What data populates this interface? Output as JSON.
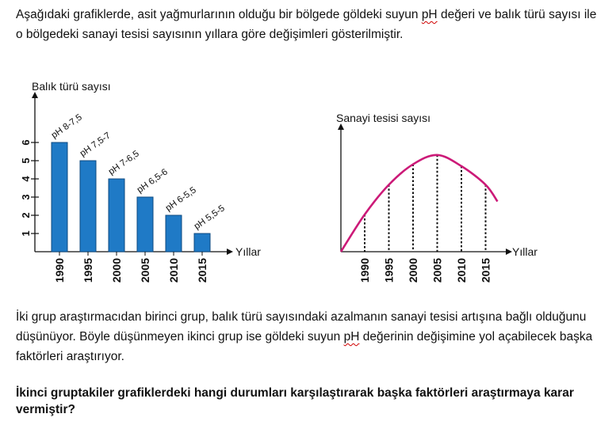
{
  "text": {
    "intro_a": "Aşağıdaki grafiklerde, asit yağmurlarının olduğu bir bölgede göldeki suyun ",
    "intro_ph": "pH",
    "intro_b": " değeri ve balık türü sayısı ile o bölgedeki sanayi tesisi sayısının yıllara göre değişimleri gösterilmiştir.",
    "middle_a": "İki grup araştırmacıdan birinci grup, balık türü sayısındaki azalmanın sanayi tesisi artışına bağlı olduğunu düşünüyor. Böyle düşünmeyen ikinci grup ise göldeki suyun ",
    "middle_ph": "pH",
    "middle_b": " değerinin değişimine yol açabilecek başka faktörleri araştırıyor.",
    "question": "İkinci gruptakiler grafiklerdeki hangi durumları karşılaştırarak başka faktörleri araştırmaya karar vermiştir?"
  },
  "colors": {
    "bar": "#1f7ac6",
    "curve": "#cc1a78",
    "axis": "#111111"
  },
  "chart_data": [
    {
      "type": "bar",
      "ylabel": "Balık türü sayısı",
      "xlabel": "Yıllar",
      "categories": [
        "1990",
        "1995",
        "2000",
        "2005",
        "2010",
        "2015"
      ],
      "values": [
        6,
        5,
        4,
        3,
        2,
        1
      ],
      "bar_labels": [
        "pH 8-7,5",
        "pH 7,5-7",
        "pH 7-6,5",
        "pH 6,5-6",
        "pH 6-5,5",
        "pH 5,5-5"
      ],
      "yticks": [
        1,
        2,
        3,
        4,
        5,
        6
      ],
      "ylim": [
        0,
        7
      ]
    },
    {
      "type": "line",
      "ylabel": "Sanayi tesisi sayısı",
      "xlabel": "Yıllar",
      "categories": [
        "1990",
        "1995",
        "2000",
        "2005",
        "2010",
        "2015"
      ],
      "values": [
        2,
        3.6,
        4.7,
        5.2,
        4.6,
        3.6
      ],
      "start_value": 0,
      "end_value": 2.7
    }
  ]
}
